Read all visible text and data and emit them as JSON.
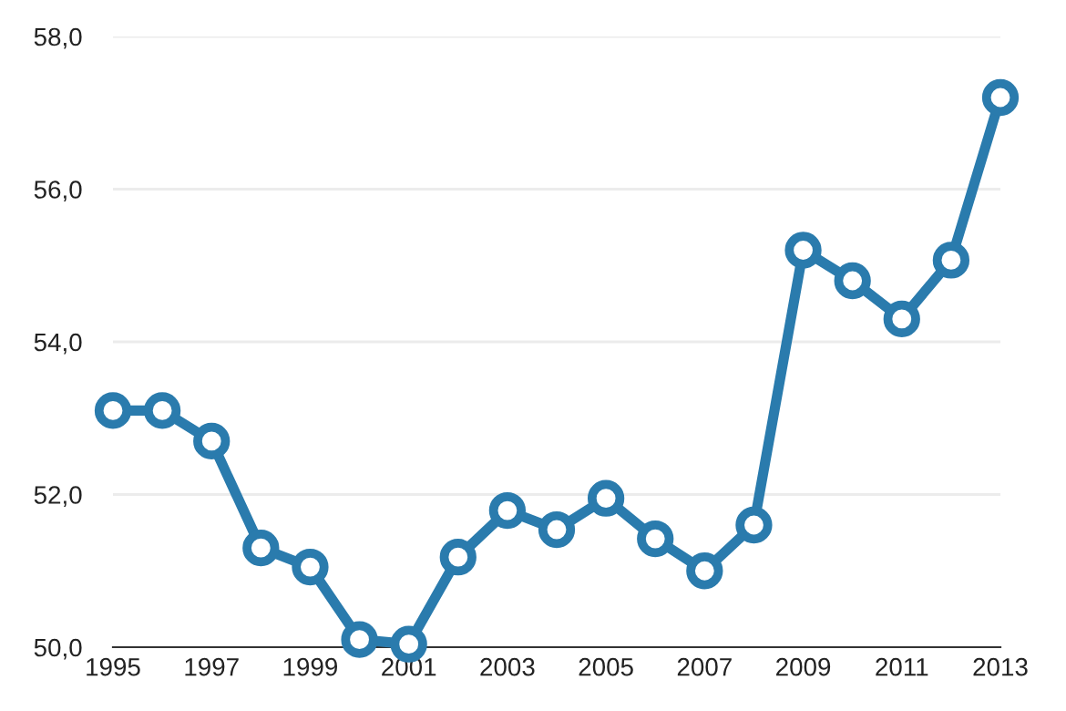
{
  "chart_data": {
    "type": "line",
    "x": [
      1995,
      1996,
      1997,
      1998,
      1999,
      2000,
      2001,
      2002,
      2003,
      2004,
      2005,
      2006,
      2007,
      2008,
      2009,
      2010,
      2011,
      2012,
      2013
    ],
    "series": [
      {
        "color": "#2a7bad",
        "values": [
          53.1,
          53.1,
          52.7,
          51.3,
          51.05,
          50.1,
          50.04,
          51.18,
          51.79,
          51.54,
          51.95,
          51.42,
          51.0,
          51.6,
          55.2,
          54.8,
          54.3,
          55.07,
          57.2
        ]
      }
    ],
    "xlim": [
      1995,
      2013
    ],
    "xticks": [
      1995,
      1997,
      1999,
      2001,
      2003,
      2005,
      2007,
      2009,
      2011,
      2013
    ],
    "ylim": [
      50,
      58
    ],
    "yticks": [
      {
        "value": 50,
        "label": "50,0"
      },
      {
        "value": 52,
        "label": "52,0"
      },
      {
        "value": 54,
        "label": "54,0"
      },
      {
        "value": 56,
        "label": "56,0"
      },
      {
        "value": 58,
        "label": "58,0"
      }
    ],
    "grid": "y",
    "marker": "circle",
    "line_style": "solid",
    "legend": false
  }
}
